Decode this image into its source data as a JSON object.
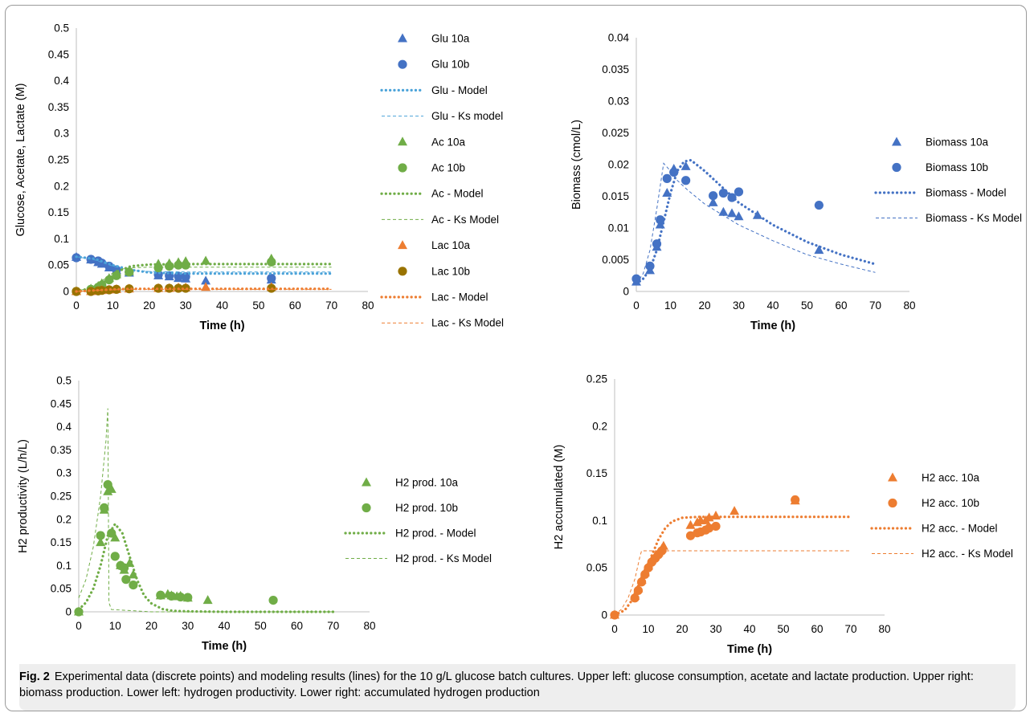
{
  "caption": {
    "label": "Fig. 2",
    "text": "Experimental data (discrete points) and modeling results (lines) for the 10 g/L glucose batch cultures. Upper left: glucose consumption, acetate and lactate production. Upper right: biomass production. Lower left: hydrogen productivity. Lower right: accumulated hydrogen production"
  },
  "chart_data": [
    {
      "type": "scatter",
      "ylabel": "Glucose, Acetate, Lactate (M)",
      "xlabel": "Time (h)",
      "xlim": [
        0,
        80
      ],
      "ylim": [
        0,
        0.5
      ],
      "xticks": [
        0,
        10,
        20,
        30,
        40,
        50,
        60,
        70,
        80
      ],
      "yticks": [
        0,
        0.05,
        0.1,
        0.15,
        0.2,
        0.25,
        0.3,
        0.35,
        0.4,
        0.45,
        0.5
      ],
      "grid": false,
      "legend": "right",
      "series": [
        {
          "name": "Glu 10a",
          "kind": "marker",
          "marker": "triangle",
          "color": "#4472C4",
          "x": [
            0,
            4,
            6,
            7,
            9,
            11,
            14.5,
            22.5,
            25.5,
            28,
            30,
            35.5,
            53.5
          ],
          "y": [
            0.065,
            0.06,
            0.055,
            0.052,
            0.045,
            0.04,
            0.035,
            0.03,
            0.028,
            0.025,
            0.024,
            0.02,
            0.022
          ]
        },
        {
          "name": "Glu 10b",
          "kind": "marker",
          "marker": "circle",
          "color": "#4472C4",
          "x": [
            0,
            4,
            6,
            7,
            9,
            11,
            14.5,
            22.5,
            25.5,
            28,
            30,
            53.5
          ],
          "y": [
            0.064,
            0.061,
            0.058,
            0.054,
            0.048,
            0.041,
            0.037,
            0.032,
            0.03,
            0.029,
            0.028,
            0.025
          ]
        },
        {
          "name": "Glu - Model",
          "kind": "line",
          "style": "dotted",
          "color": "#4BA3D9",
          "x": [
            0,
            5,
            10,
            15,
            20,
            30,
            40,
            50,
            60,
            70
          ],
          "y": [
            0.066,
            0.062,
            0.05,
            0.041,
            0.036,
            0.034,
            0.034,
            0.034,
            0.034,
            0.034
          ]
        },
        {
          "name": "Glu - Ks model",
          "kind": "line",
          "style": "dashed",
          "color": "#4BA3D9",
          "x": [
            0,
            5,
            10,
            15,
            20,
            30,
            40,
            50,
            60,
            70
          ],
          "y": [
            0.066,
            0.06,
            0.048,
            0.04,
            0.038,
            0.037,
            0.037,
            0.037,
            0.037,
            0.037
          ]
        },
        {
          "name": "Ac 10a",
          "kind": "marker",
          "marker": "triangle",
          "color": "#70AD47",
          "x": [
            0,
            4,
            6,
            7,
            9,
            11,
            14.5,
            22.5,
            25.5,
            28,
            30,
            35.5,
            53.5
          ],
          "y": [
            0,
            0.005,
            0.01,
            0.015,
            0.025,
            0.032,
            0.038,
            0.052,
            0.053,
            0.055,
            0.057,
            0.058,
            0.062
          ]
        },
        {
          "name": "Ac 10b",
          "kind": "marker",
          "marker": "circle",
          "color": "#70AD47",
          "x": [
            0,
            4,
            6,
            7,
            9,
            11,
            14.5,
            22.5,
            25.5,
            28,
            30,
            53.5
          ],
          "y": [
            0,
            0.004,
            0.008,
            0.012,
            0.022,
            0.03,
            0.037,
            0.045,
            0.048,
            0.05,
            0.05,
            0.056
          ]
        },
        {
          "name": "Ac - Model",
          "kind": "line",
          "style": "dotted",
          "color": "#70AD47",
          "x": [
            0,
            5,
            8,
            10,
            12,
            15,
            20,
            30,
            40,
            50,
            60,
            70
          ],
          "y": [
            0,
            0.008,
            0.02,
            0.03,
            0.04,
            0.048,
            0.051,
            0.052,
            0.052,
            0.052,
            0.052,
            0.052
          ]
        },
        {
          "name": "Ac - Ks Model",
          "kind": "line",
          "style": "dashed",
          "color": "#70AD47",
          "x": [
            0,
            5,
            8,
            10,
            12,
            15,
            20,
            30,
            40,
            50,
            60,
            70
          ],
          "y": [
            0,
            0.01,
            0.025,
            0.035,
            0.042,
            0.045,
            0.046,
            0.046,
            0.046,
            0.046,
            0.046,
            0.046
          ]
        },
        {
          "name": "Lac 10a",
          "kind": "marker",
          "marker": "triangle",
          "color": "#ED7D31",
          "x": [
            0,
            4,
            6,
            7,
            9,
            11,
            14.5,
            22.5,
            25.5,
            28,
            30,
            35.5,
            53.5
          ],
          "y": [
            0,
            0,
            0.001,
            0.002,
            0.003,
            0.004,
            0.005,
            0.006,
            0.006,
            0.007,
            0.007,
            0.008,
            0.008
          ]
        },
        {
          "name": "Lac 10b",
          "kind": "marker",
          "marker": "circle",
          "color": "#997300",
          "x": [
            0,
            4,
            6,
            7,
            9,
            11,
            14.5,
            22.5,
            25.5,
            28,
            30,
            53.5
          ],
          "y": [
            0,
            0,
            0.001,
            0.002,
            0.003,
            0.004,
            0.005,
            0.006,
            0.006,
            0.006,
            0.006,
            0.006
          ]
        },
        {
          "name": "Lac - Model",
          "kind": "line",
          "style": "dotted",
          "color": "#ED7D31",
          "x": [
            0,
            5,
            10,
            15,
            20,
            30,
            40,
            50,
            60,
            70
          ],
          "y": [
            0,
            0.002,
            0.004,
            0.005,
            0.005,
            0.005,
            0.005,
            0.005,
            0.005,
            0.005
          ]
        },
        {
          "name": "Lac - Ks Model",
          "kind": "line",
          "style": "dashed",
          "color": "#ED7D31",
          "x": [
            0,
            5,
            10,
            15,
            20,
            30,
            40,
            50,
            60,
            70
          ],
          "y": [
            0,
            0.002,
            0.003,
            0.004,
            0.004,
            0.004,
            0.004,
            0.004,
            0.004,
            0.004
          ]
        }
      ]
    },
    {
      "type": "scatter",
      "ylabel": "Biomass (cmol/L)",
      "xlabel": "Time (h)",
      "xlim": [
        0,
        80
      ],
      "ylim": [
        0,
        0.04
      ],
      "xticks": [
        0,
        10,
        20,
        30,
        40,
        50,
        60,
        70,
        80
      ],
      "yticks": [
        0,
        0.005,
        0.01,
        0.015,
        0.02,
        0.025,
        0.03,
        0.035,
        0.04
      ],
      "grid": false,
      "legend": "right",
      "series": [
        {
          "name": "Biomass 10a",
          "kind": "marker",
          "marker": "triangle",
          "color": "#4472C4",
          "x": [
            0,
            4,
            6,
            7,
            9,
            11,
            14.5,
            22.5,
            25.5,
            28,
            30,
            35.5,
            53.5
          ],
          "y": [
            0.0015,
            0.0033,
            0.007,
            0.0105,
            0.0155,
            0.0193,
            0.0197,
            0.014,
            0.0125,
            0.0123,
            0.0118,
            0.012,
            0.0065
          ]
        },
        {
          "name": "Biomass 10b",
          "kind": "marker",
          "marker": "circle",
          "color": "#4472C4",
          "x": [
            0,
            4,
            6,
            7,
            9,
            11,
            14.5,
            22.5,
            25.5,
            28,
            30,
            53.5
          ],
          "y": [
            0.002,
            0.004,
            0.0075,
            0.0113,
            0.0178,
            0.0188,
            0.0175,
            0.0151,
            0.0155,
            0.0148,
            0.0157,
            0.0136
          ]
        },
        {
          "name": "Biomass - Model",
          "kind": "line",
          "style": "dotted",
          "color": "#4472C4",
          "x": [
            0,
            2,
            4,
            6,
            8,
            10,
            12,
            14,
            16,
            20,
            25,
            30,
            40,
            50,
            60,
            70
          ],
          "y": [
            0.0012,
            0.002,
            0.0035,
            0.0065,
            0.011,
            0.0155,
            0.019,
            0.0205,
            0.0207,
            0.019,
            0.0165,
            0.014,
            0.0105,
            0.0078,
            0.0058,
            0.0043
          ]
        },
        {
          "name": "Biomass - Ks Model",
          "kind": "line",
          "style": "dashed",
          "color": "#4472C4",
          "x": [
            0,
            2,
            4,
            6,
            8,
            10,
            12,
            15,
            20,
            30,
            40,
            50,
            60,
            70
          ],
          "y": [
            0.0012,
            0.0028,
            0.0065,
            0.013,
            0.0202,
            0.019,
            0.0175,
            0.016,
            0.0138,
            0.0105,
            0.008,
            0.0058,
            0.0043,
            0.003
          ]
        }
      ]
    },
    {
      "type": "scatter",
      "ylabel": "H2 productivity (L/h/L)",
      "xlabel": "Time (h)",
      "xlim": [
        0,
        80
      ],
      "ylim": [
        0,
        0.5
      ],
      "xticks": [
        0,
        10,
        20,
        30,
        40,
        50,
        60,
        70,
        80
      ],
      "yticks": [
        0,
        0.05,
        0.1,
        0.15,
        0.2,
        0.25,
        0.3,
        0.35,
        0.4,
        0.45,
        0.5
      ],
      "grid": false,
      "legend": "right",
      "series": [
        {
          "name": "H2 prod. 10a",
          "kind": "marker",
          "marker": "triangle",
          "color": "#70AD47",
          "x": [
            0,
            6,
            7,
            8,
            9,
            10,
            11.5,
            12.5,
            14,
            15,
            22.5,
            24.5,
            25.5,
            27,
            28,
            30,
            35.5
          ],
          "y": [
            0,
            0.15,
            0.22,
            0.26,
            0.265,
            0.16,
            0.1,
            0.09,
            0.105,
            0.08,
            0.035,
            0.038,
            0.035,
            0.033,
            0.034,
            0.03,
            0.025
          ]
        },
        {
          "name": "H2 prod. 10b",
          "kind": "marker",
          "marker": "circle",
          "color": "#70AD47",
          "x": [
            0,
            6,
            7,
            8,
            9,
            10,
            11.5,
            12.5,
            13,
            15,
            22.5,
            25.5,
            28,
            30,
            53.5
          ],
          "y": [
            0,
            0.165,
            0.225,
            0.275,
            0.17,
            0.12,
            0.1,
            0.095,
            0.07,
            0.058,
            0.036,
            0.034,
            0.032,
            0.031,
            0.025
          ]
        },
        {
          "name": "H2 prod. - Model",
          "kind": "line",
          "style": "dotted",
          "color": "#70AD47",
          "x": [
            0,
            2,
            4,
            6,
            8,
            10,
            12,
            14,
            16,
            18,
            20,
            23,
            26,
            30,
            40,
            50,
            60,
            70
          ],
          "y": [
            0.005,
            0.02,
            0.05,
            0.1,
            0.165,
            0.19,
            0.17,
            0.12,
            0.07,
            0.035,
            0.018,
            0.006,
            0.002,
            0.001,
            0,
            0,
            0,
            0
          ]
        },
        {
          "name": "H2 prod. - Ks Model",
          "kind": "line",
          "style": "dashed",
          "color": "#70AD47",
          "x": [
            0,
            2,
            4,
            6,
            7.5,
            8,
            8.3,
            9,
            20,
            40,
            70
          ],
          "y": [
            0.03,
            0.07,
            0.14,
            0.25,
            0.37,
            0.44,
            0.02,
            0.005,
            0,
            0,
            0
          ]
        }
      ]
    },
    {
      "type": "scatter",
      "ylabel": "H2 accumulated (M)",
      "xlabel": "Time (h)",
      "xlim": [
        0,
        80
      ],
      "ylim": [
        0,
        0.25
      ],
      "xticks": [
        0,
        10,
        20,
        30,
        40,
        50,
        60,
        70,
        80
      ],
      "yticks": [
        0,
        0.05,
        0.1,
        0.15,
        0.2,
        0.25
      ],
      "grid": false,
      "legend": "right",
      "series": [
        {
          "name": "H2 acc. 10a",
          "kind": "marker",
          "marker": "triangle",
          "color": "#ED7D31",
          "x": [
            0,
            6,
            7,
            8,
            9,
            10,
            11,
            12,
            13,
            14,
            14.5,
            22.5,
            24.5,
            25.5,
            27,
            28,
            30,
            35.5,
            53.5
          ],
          "y": [
            0,
            0.02,
            0.028,
            0.037,
            0.045,
            0.052,
            0.058,
            0.062,
            0.066,
            0.07,
            0.073,
            0.095,
            0.098,
            0.1,
            0.1,
            0.103,
            0.105,
            0.11,
            0.121
          ]
        },
        {
          "name": "H2 acc. 10b",
          "kind": "marker",
          "marker": "circle",
          "color": "#ED7D31",
          "x": [
            0,
            6,
            7,
            8,
            9,
            10,
            11,
            12,
            13,
            14,
            22.5,
            24.5,
            25.5,
            27,
            28,
            30,
            53.5
          ],
          "y": [
            0,
            0.018,
            0.026,
            0.035,
            0.043,
            0.05,
            0.056,
            0.06,
            0.064,
            0.068,
            0.084,
            0.087,
            0.088,
            0.09,
            0.092,
            0.094,
            0.122
          ]
        },
        {
          "name": "H2 acc. - Model",
          "kind": "line",
          "style": "dotted",
          "color": "#ED7D31",
          "x": [
            0,
            3,
            5,
            7,
            9,
            11,
            13,
            15,
            17,
            20,
            25,
            30,
            40,
            50,
            60,
            70
          ],
          "y": [
            0,
            0.005,
            0.015,
            0.028,
            0.045,
            0.063,
            0.08,
            0.092,
            0.099,
            0.103,
            0.104,
            0.104,
            0.104,
            0.104,
            0.104,
            0.104
          ]
        },
        {
          "name": "H2 acc. - Ks Model",
          "kind": "line",
          "style": "dashed",
          "color": "#ED7D31",
          "x": [
            0,
            2,
            4,
            6,
            7.5,
            8,
            10,
            20,
            30,
            40,
            50,
            60,
            70
          ],
          "y": [
            0,
            0.006,
            0.018,
            0.038,
            0.062,
            0.068,
            0.068,
            0.068,
            0.068,
            0.068,
            0.068,
            0.068,
            0.068
          ]
        }
      ]
    }
  ]
}
